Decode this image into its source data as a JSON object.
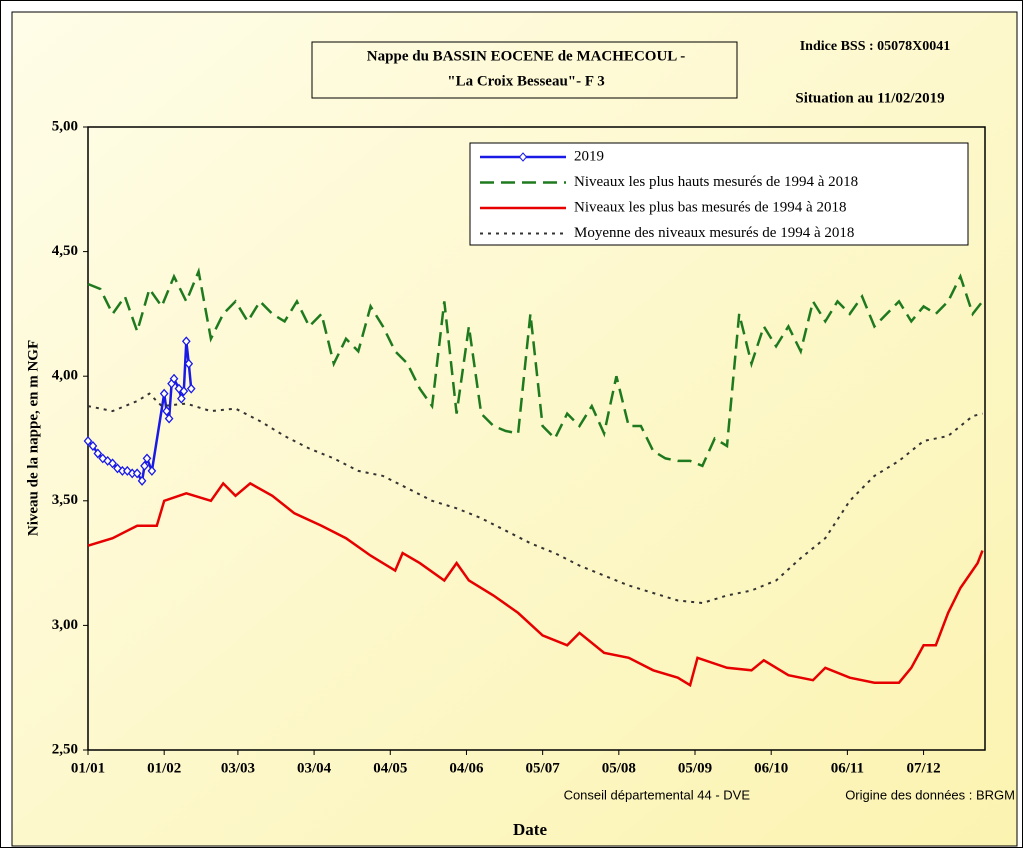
{
  "chart_data": {
    "type": "line",
    "title": "Nappe du BASSIN EOCENE de MACHECOUL -",
    "subtitle": "\"La Croix Besseau\"- F 3",
    "annotations": [
      "Indice BSS : 05078X0041",
      "Situation au 11/02/2019",
      "Conseil départemental 44 - DVE",
      "Origine des données : BRGM"
    ],
    "y_label": "Niveau de la nappe, en m NGF",
    "x_label": "Date",
    "xlim": [
      0,
      365
    ],
    "xticks": [
      {
        "value": 0,
        "label": "01/01"
      },
      {
        "value": 31,
        "label": "01/02"
      },
      {
        "value": 61,
        "label": "03/03"
      },
      {
        "value": 92,
        "label": "03/04"
      },
      {
        "value": 123,
        "label": "04/05"
      },
      {
        "value": 154,
        "label": "04/06"
      },
      {
        "value": 185,
        "label": "05/07"
      },
      {
        "value": 216,
        "label": "05/08"
      },
      {
        "value": 247,
        "label": "05/09"
      },
      {
        "value": 278,
        "label": "06/10"
      },
      {
        "value": 309,
        "label": "06/11"
      },
      {
        "value": 340,
        "label": "07/12"
      }
    ],
    "ylim": [
      2.5,
      5
    ],
    "yticks": [
      {
        "value": 2.5,
        "label": "2,50"
      },
      {
        "value": 3,
        "label": "3,00"
      },
      {
        "value": 3.5,
        "label": "3,50"
      },
      {
        "value": 4,
        "label": "4,00"
      },
      {
        "value": 4.5,
        "label": "4,50"
      },
      {
        "value": 5,
        "label": "5,00"
      }
    ],
    "grid": false,
    "legend": "top-right",
    "series": [
      {
        "name": "2019",
        "color": "#1a1ae6",
        "line_style": "solid",
        "markers": true,
        "x": [
          0,
          2,
          4,
          6,
          8,
          10,
          12,
          14,
          16,
          18,
          20,
          22,
          23,
          24,
          26,
          31,
          32,
          33,
          34,
          35,
          37,
          38,
          39,
          40,
          41,
          42
        ],
        "values": [
          3.74,
          3.72,
          3.69,
          3.67,
          3.66,
          3.65,
          3.63,
          3.62,
          3.62,
          3.61,
          3.61,
          3.58,
          3.64,
          3.67,
          3.62,
          3.93,
          3.86,
          3.83,
          3.97,
          3.99,
          3.95,
          3.91,
          3.94,
          4.14,
          4.05,
          3.95
        ]
      },
      {
        "name": "Niveaux les plus hauts mesurés de 1994 à 2018",
        "color": "#1f7a1f",
        "line_style": "dashed",
        "markers": false,
        "x": [
          0,
          5,
          10,
          15,
          20,
          25,
          30,
          35,
          40,
          45,
          50,
          55,
          60,
          65,
          70,
          75,
          80,
          85,
          90,
          95,
          100,
          105,
          110,
          115,
          120,
          125,
          130,
          135,
          140,
          145,
          150,
          155,
          160,
          165,
          170,
          175,
          180,
          185,
          190,
          195,
          200,
          205,
          210,
          215,
          220,
          225,
          230,
          235,
          240,
          245,
          250,
          255,
          260,
          265,
          270,
          275,
          280,
          285,
          290,
          295,
          300,
          305,
          310,
          315,
          320,
          325,
          330,
          335,
          340,
          345,
          350,
          355,
          360,
          364
        ],
        "values": [
          4.37,
          4.35,
          4.25,
          4.32,
          4.18,
          4.35,
          4.28,
          4.4,
          4.3,
          4.42,
          4.15,
          4.25,
          4.3,
          4.22,
          4.3,
          4.25,
          4.22,
          4.3,
          4.2,
          4.25,
          4.05,
          4.15,
          4.1,
          4.28,
          4.2,
          4.1,
          4.05,
          3.95,
          3.88,
          4.3,
          3.85,
          4.2,
          3.85,
          3.8,
          3.78,
          3.77,
          4.25,
          3.8,
          3.75,
          3.85,
          3.8,
          3.88,
          3.77,
          4.0,
          3.8,
          3.8,
          3.7,
          3.67,
          3.66,
          3.66,
          3.64,
          3.75,
          3.72,
          4.25,
          4.05,
          4.2,
          4.12,
          4.2,
          4.1,
          4.3,
          4.22,
          4.3,
          4.25,
          4.32,
          4.2,
          4.25,
          4.3,
          4.22,
          4.28,
          4.25,
          4.3,
          4.4,
          4.25,
          4.3
        ]
      },
      {
        "name": "Niveaux les plus bas mesurés de 1994 à 2018",
        "color": "#e60000",
        "line_style": "solid",
        "markers": false,
        "x": [
          0,
          10,
          20,
          28,
          31,
          40,
          50,
          55,
          60,
          66,
          75,
          84,
          95,
          105,
          115,
          125,
          128,
          135,
          145,
          150,
          155,
          165,
          175,
          185,
          195,
          200,
          210,
          220,
          230,
          240,
          245,
          248,
          260,
          270,
          275,
          285,
          295,
          300,
          310,
          320,
          330,
          335,
          340,
          345,
          350,
          355,
          362,
          364
        ],
        "values": [
          3.32,
          3.35,
          3.4,
          3.4,
          3.5,
          3.53,
          3.5,
          3.57,
          3.52,
          3.57,
          3.52,
          3.45,
          3.4,
          3.35,
          3.28,
          3.22,
          3.29,
          3.25,
          3.18,
          3.25,
          3.18,
          3.12,
          3.05,
          2.96,
          2.92,
          2.97,
          2.89,
          2.87,
          2.82,
          2.79,
          2.76,
          2.87,
          2.83,
          2.82,
          2.86,
          2.8,
          2.78,
          2.83,
          2.79,
          2.77,
          2.77,
          2.83,
          2.92,
          2.92,
          3.05,
          3.15,
          3.25,
          3.3
        ]
      },
      {
        "name": "Moyenne des niveaux mesurés de 1994 à 2018",
        "color": "#333333",
        "line_style": "dotted",
        "markers": false,
        "x": [
          0,
          10,
          20,
          25,
          30,
          40,
          50,
          60,
          70,
          80,
          90,
          100,
          110,
          120,
          130,
          140,
          150,
          160,
          170,
          180,
          190,
          200,
          210,
          220,
          230,
          240,
          250,
          260,
          270,
          280,
          290,
          300,
          310,
          320,
          330,
          340,
          350,
          360,
          364
        ],
        "values": [
          3.88,
          3.86,
          3.9,
          3.93,
          3.88,
          3.89,
          3.86,
          3.87,
          3.82,
          3.76,
          3.71,
          3.67,
          3.62,
          3.6,
          3.55,
          3.5,
          3.47,
          3.43,
          3.38,
          3.33,
          3.29,
          3.24,
          3.2,
          3.16,
          3.13,
          3.1,
          3.09,
          3.12,
          3.14,
          3.18,
          3.27,
          3.35,
          3.5,
          3.6,
          3.66,
          3.74,
          3.76,
          3.84,
          3.85
        ]
      }
    ]
  }
}
